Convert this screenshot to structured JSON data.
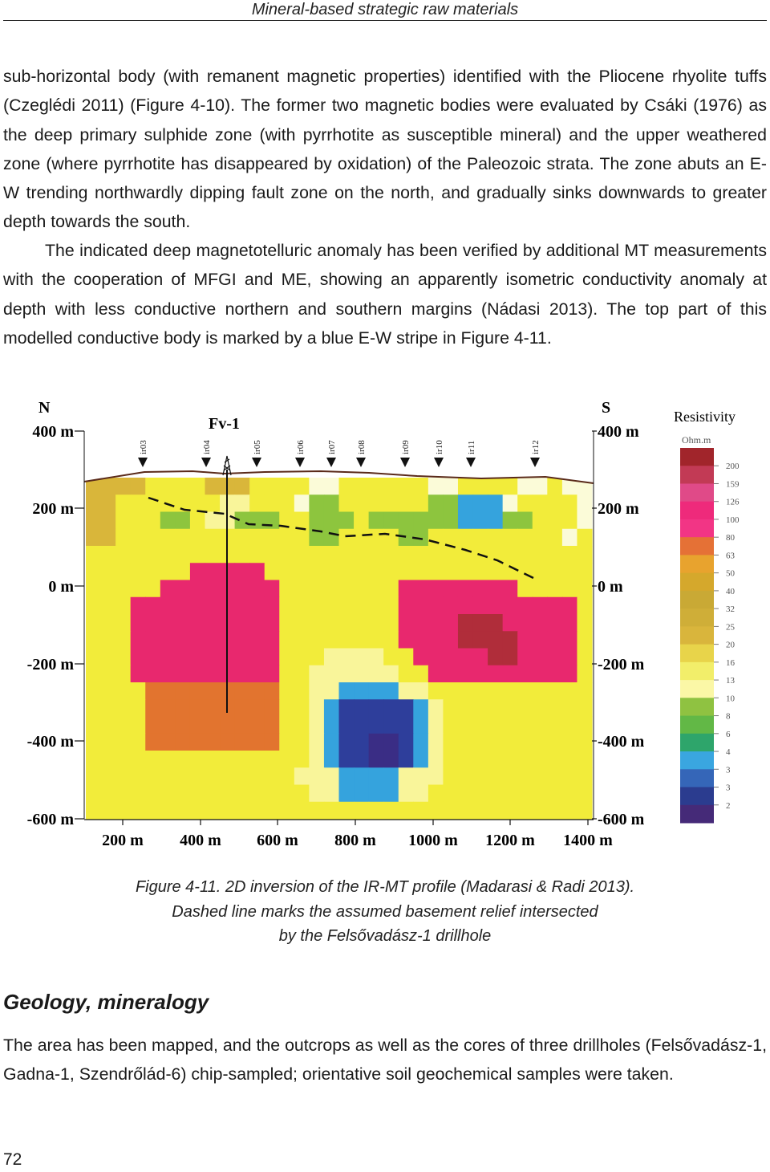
{
  "running_head": "Mineral-based strategic raw materials",
  "paragraphs": {
    "p1": "sub-horizontal body (with remanent magnetic properties) identified with the Pliocene rhyolite tuffs (Czeglédi 2011) (Figure 4-10). The former two magnetic bodies were evaluated by Csáki (1976) as the deep primary sulphide zone (with pyrrhotite as susceptible mineral) and the upper weathered zone (where pyrrhotite has disappeared by oxidation) of the Paleozoic strata. The zone abuts an E-W trending northwardly dipping fault zone on the north, and gradually sinks downwards to greater depth towards the south.",
    "p2": "The indicated deep magnetotelluric anomaly has been verified by additional MT measurements with the cooperation of MFGI and ME, showing an apparently isometric conductivity anomaly at depth with less conductive northern and southern margins (Nádasi 2013). The top part of this modelled conductive body is marked by a blue E-W stripe in Figure 4-11.",
    "p3": "The area has been mapped, and the outcrops as well as the cores of three drillholes (Felsővadász-1, Gadna-1, Szendrőlád-6) chip-sampled; orientative soil geochemical samples were taken."
  },
  "figure": {
    "north_label": "N",
    "south_label": "S",
    "drillhole_label": "Fv-1",
    "depth_labels_left": [
      "400 m",
      "200 m",
      "0 m",
      "-200 m",
      "-400 m",
      "-600 m"
    ],
    "depth_labels_right": [
      "400 m",
      "200 m",
      "0 m",
      "-200 m",
      "-400 m",
      "-600 m"
    ],
    "distance_labels": [
      "200 m",
      "400 m",
      "600 m",
      "800 m",
      "1000 m",
      "1200 m",
      "1400 m"
    ],
    "stations": [
      "ir03",
      "ir04",
      "ir05",
      "ir06",
      "ir07",
      "ir08",
      "ir09",
      "ir10",
      "ir11",
      "ir12"
    ],
    "legend_title": "Resistivity",
    "legend_unit": "Ohm.m",
    "legend_values": [
      "200",
      "159",
      "126",
      "100",
      "80",
      "63",
      "50",
      "40",
      "32",
      "25",
      "20",
      "16",
      "13",
      "10",
      "8",
      "6",
      "4",
      "3",
      "3",
      "2"
    ],
    "legend_colors": [
      "#a1252b",
      "#c23a55",
      "#e04a88",
      "#ee2a7b",
      "#f23585",
      "#e57136",
      "#e8a32e",
      "#d5a82c",
      "#c9a935",
      "#cfae38",
      "#d9b53c",
      "#e8d44a",
      "#f2ee6a",
      "#fbf7a6",
      "#8fc241",
      "#62b846",
      "#2ea56b",
      "#3aa6e0",
      "#3566b8",
      "#2b3c8f",
      "#452a78"
    ],
    "heatmap_palette": {
      "Y": "#f2ec3a",
      "L": "#f9f59a",
      "W": "#fbfbd8",
      "O": "#d9b63a",
      "G": "#8dc53e",
      "g": "#c4dc6e",
      "b": "#35a3dd",
      "N": "#2e3e9b",
      "n": "#3a2d85",
      "P": "#e8286e",
      "p": "#ee5d8c",
      "D": "#b02d3a",
      "R": "#e2742f"
    },
    "heatmap_rows": [
      "OOOOYYYYOOOYYYYWWYYYYYYWWYYYYWWYWW",
      "OOYYYYYYYLLYYYWGGYYYYYYGGbbbWYYYYW",
      "OOYYYGGYLLGGGYYGGGYGGGGGGbbbGGYYYW",
      "OOYYYYYYYYYYYYYGGYYYYGGYYYYYYYYYWY",
      "YYYYYYYYYYYYYYYYYYYYYYYYYYYYYYYYYY",
      "YYYYYYYPPPPPYYYYYYYYYYYYYYYYYYYYYY",
      "YYYYYPPPPPPPPYYYYYYYYPPPPPPPPYYYYY",
      "YYYPPPPPPPPPPYYYYYYYYPPPPPPPPPPPPY",
      "YYYPPPPPPPPPPYYYYYYYYPPPPDDDPPPPPY",
      "YYYPPPPPPPPPPYYYYYYYYPPPPDDDDPPPPY",
      "YYYPPPPPPPPPPYYYLLLLYYPPPPPDDPPPPY",
      "YYYPPPPPPPPPPYYLLLLLLYYPPPPPPPPPPY",
      "YYYYRRRRRRRRRYYLLbbbbLLYYYYYYYYYYY",
      "YYYYRRRRRRRRRYYLbNNNNNbLYYYYYYYYYY",
      "YYYYRRRRRRRRRYYLbNNNNNbLYYYYYYYYYY",
      "YYYYRRRRRRRRRYYLbNNnnNbLYYYYYYYYYY",
      "YYYYYYYYYYYYYYYLbNNnnNbLYYYYYYYYYY",
      "YYYYYYYYYYYYYYLLLbbbbLLLYYYYYYYYYY",
      "YYYYYYYYYYYYYYYLLbbbbLLYYYYYYYYYYY",
      "YYYYYYYYYYYYYYYYYYYYYYYYYYYYYYYYYY"
    ]
  },
  "caption": {
    "line1": "Figure 4-11.  2D inversion of the IR-MT profile (Madarasi & Radi 2013).",
    "line2": "Dashed line marks the assumed basement relief intersected",
    "line3": "by the Felsővadász-1 drillhole"
  },
  "section_heading": "Geology, mineralogy",
  "page_number": "72"
}
